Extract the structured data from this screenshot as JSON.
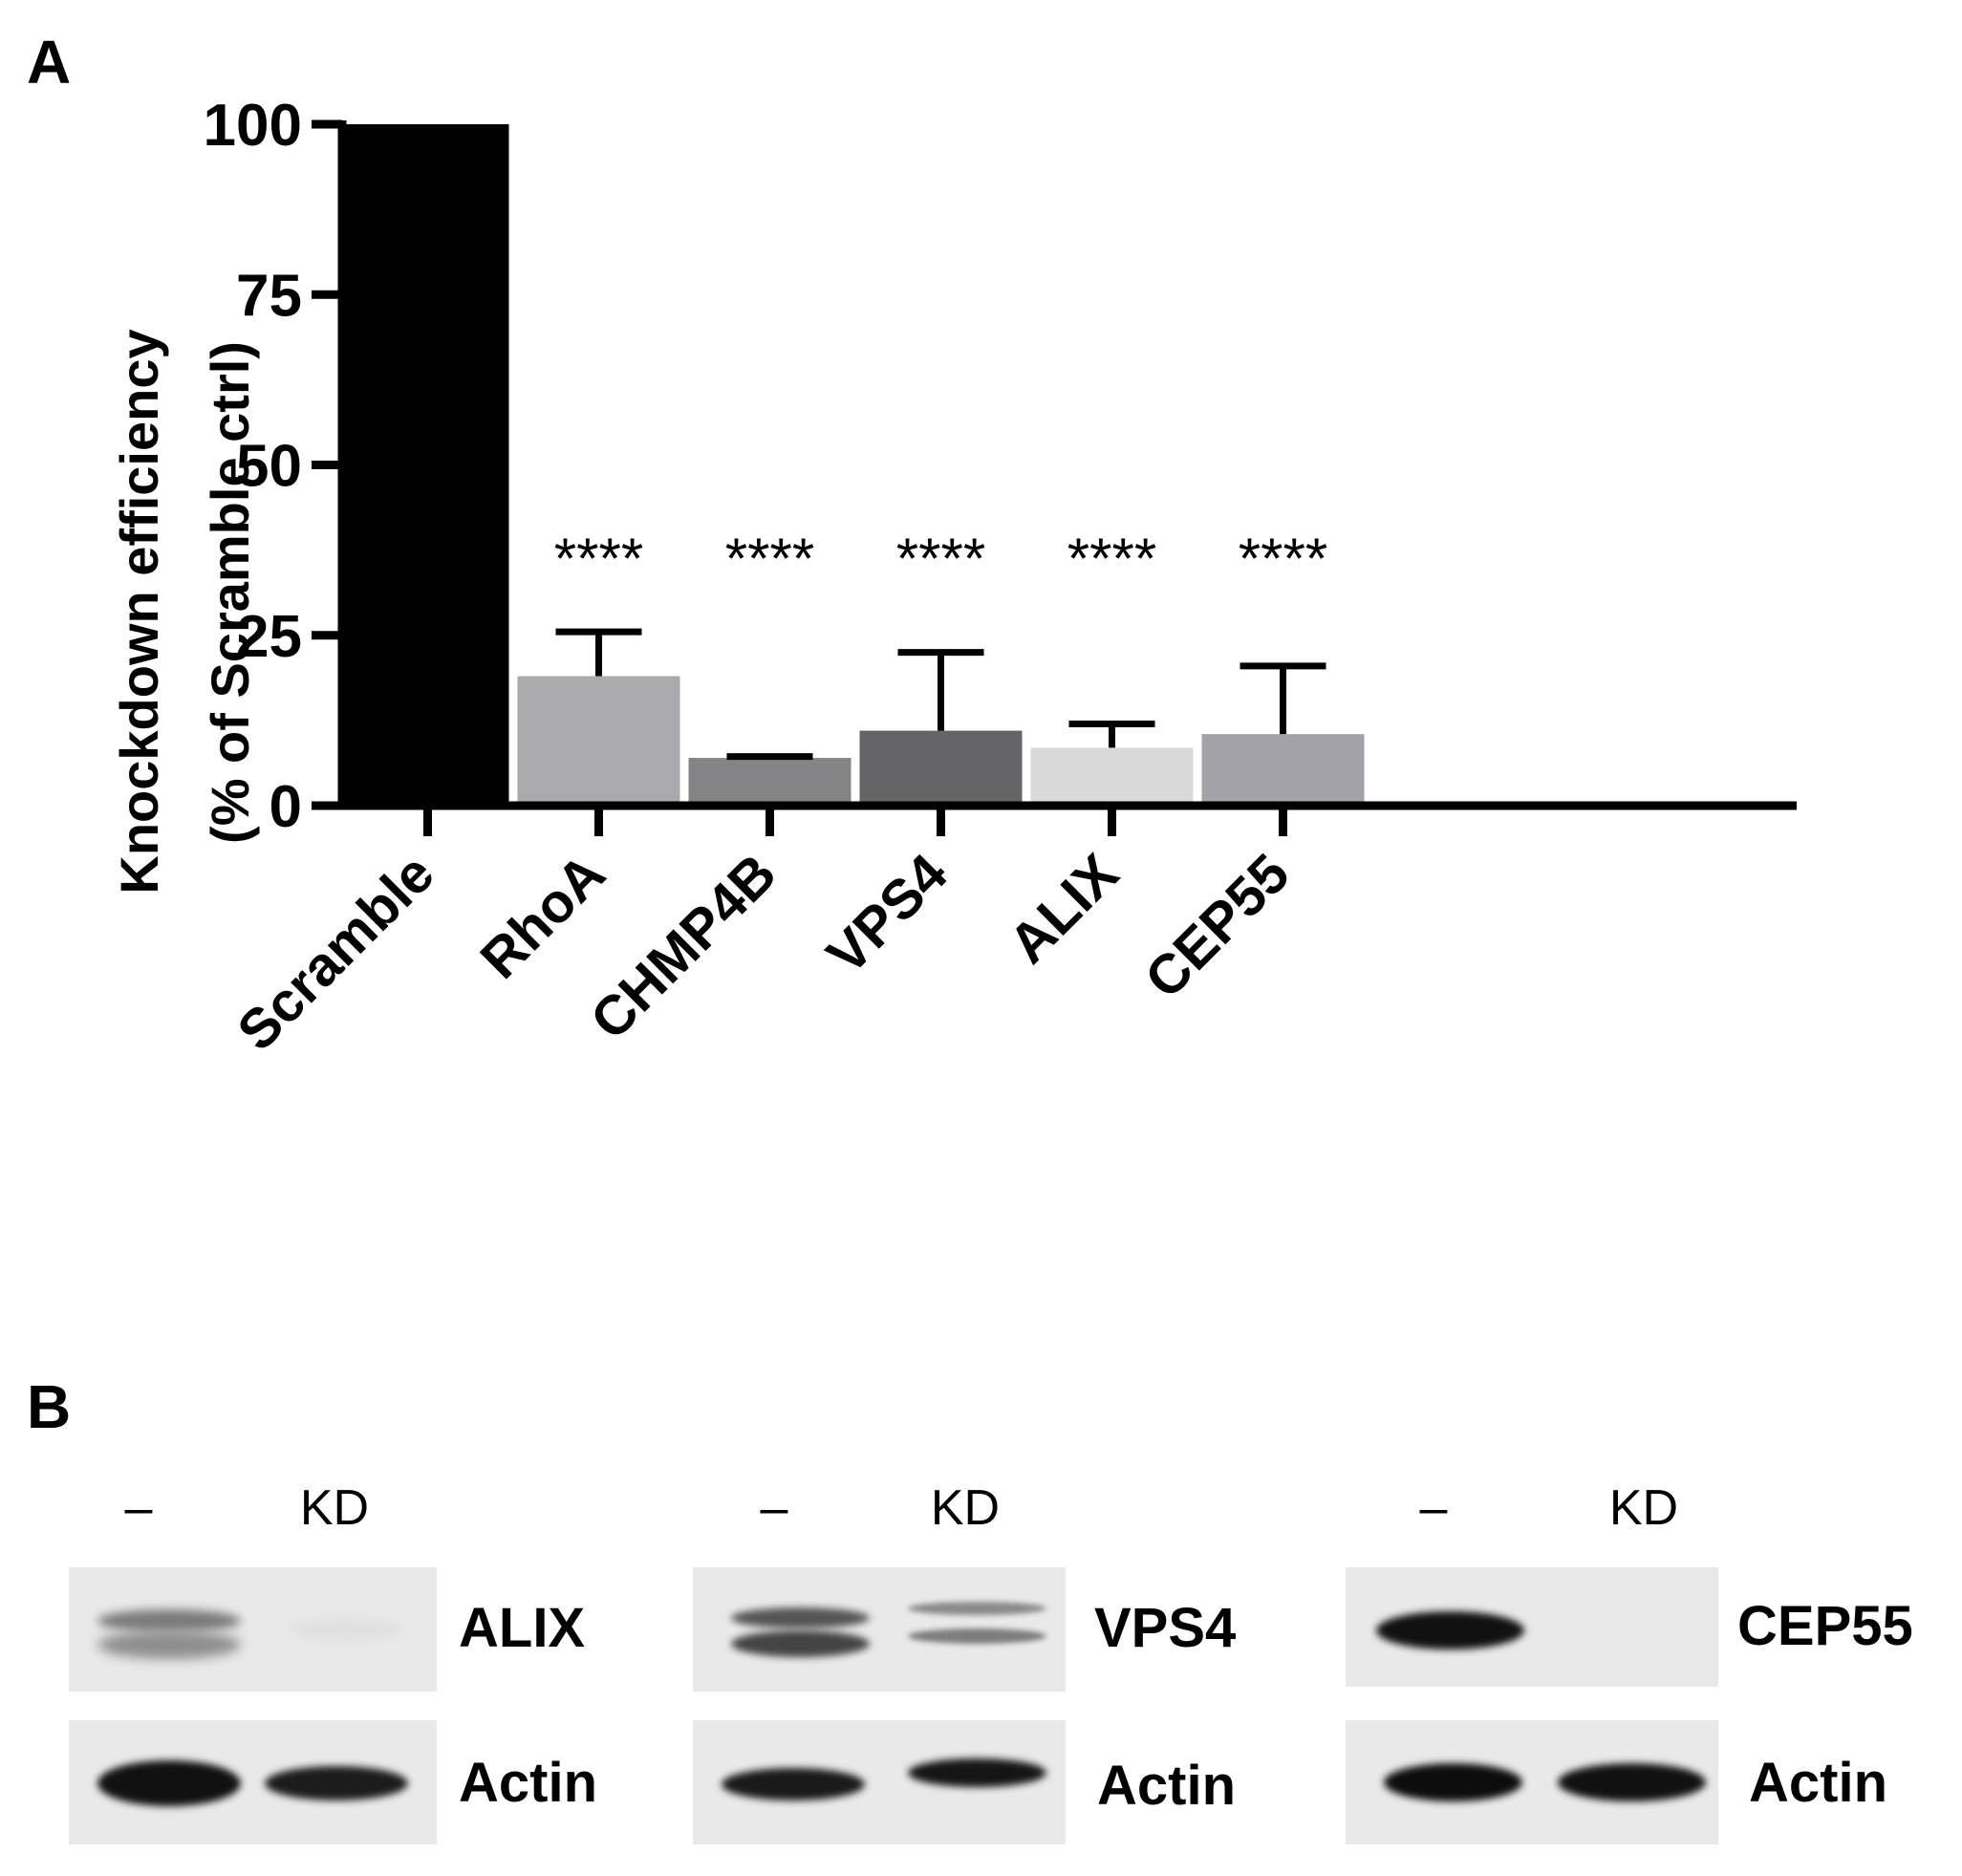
{
  "panels": {
    "a_label": "A",
    "b_label": "B"
  },
  "chart_data": {
    "type": "bar",
    "categories": [
      "Scramble",
      "RhoA",
      "CHMP4B",
      "VPS4",
      "ALIX",
      "CEP55"
    ],
    "values": [
      100,
      19,
      7,
      11,
      8.5,
      10.5
    ],
    "error_upper": [
      0,
      25.5,
      7.2,
      22.5,
      12,
      20.5
    ],
    "significance": [
      "",
      "****",
      "****",
      "****",
      "****",
      "****"
    ],
    "colors": [
      "#000000",
      "#a9a9ae",
      "#848487",
      "#656567",
      "#d9d9d9",
      "#a3a2a8"
    ],
    "ylabel_line1": "Knockdown efficiency",
    "ylabel_line2": "(% of Scramble ctrl)",
    "yticks": [
      0,
      25,
      50,
      75,
      100
    ],
    "ylim": [
      0,
      100
    ],
    "grid": false
  },
  "blots": [
    {
      "lane_labels": [
        "–",
        "KD"
      ],
      "protein_label": "ALIX",
      "loading_label": "Actin"
    },
    {
      "lane_labels": [
        "–",
        "KD"
      ],
      "protein_label": "VPS4",
      "loading_label": "Actin"
    },
    {
      "lane_labels": [
        "–",
        "KD"
      ],
      "protein_label": "CEP55",
      "loading_label": "Actin"
    }
  ]
}
